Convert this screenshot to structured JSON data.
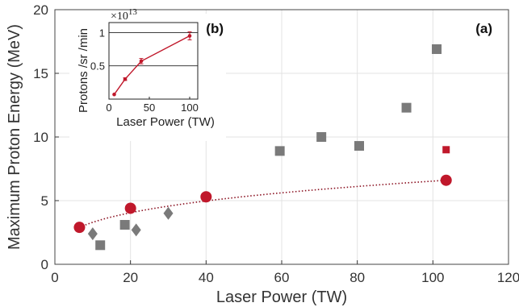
{
  "chart_data": [
    {
      "type": "scatter",
      "panel_label": "(a)",
      "xlabel": "Laser Power (TW)",
      "ylabel": "Maximum Proton Energy (MeV)",
      "xlim": [
        0,
        120
      ],
      "ylim": [
        0,
        20
      ],
      "xticks": [
        "0",
        "20",
        "40",
        "60",
        "80",
        "100",
        "120"
      ],
      "yticks": [
        "0",
        "5",
        "10",
        "15",
        "20"
      ],
      "grid": true,
      "series": [
        {
          "marker": "square",
          "color": "#7a7a7a",
          "points": [
            [
              12,
              1.5
            ],
            [
              18.5,
              3.1
            ],
            [
              59.5,
              8.9
            ],
            [
              70.5,
              10.0
            ],
            [
              80.5,
              9.3
            ],
            [
              93,
              12.3
            ],
            [
              101,
              16.9
            ]
          ]
        },
        {
          "marker": "diamond",
          "color": "#7a7a7a",
          "points": [
            [
              10,
              2.4
            ],
            [
              21.5,
              2.7
            ],
            [
              30,
              4.0
            ]
          ]
        },
        {
          "marker": "circle",
          "color": "#c0182b",
          "points": [
            [
              6.5,
              2.9
            ],
            [
              20,
              4.4
            ],
            [
              40,
              5.3
            ],
            [
              103.5,
              6.6
            ]
          ]
        },
        {
          "marker": "small-square",
          "color": "#c0182b",
          "points": [
            [
              103.5,
              9.0
            ]
          ]
        }
      ],
      "fit_curve": {
        "style": "dotted",
        "color": "#8a1020",
        "from": [
          6.5,
          2.9
        ],
        "to": [
          103.5,
          6.6
        ],
        "shape": "power-law"
      }
    },
    {
      "type": "line",
      "panel_label": "(b)",
      "xlabel": "Laser Power (TW)",
      "ylabel": "Protons /sr /min",
      "multiplier": "×10",
      "multiplier_exp": "13",
      "xlim": [
        0,
        110
      ],
      "ylim": [
        0,
        1.15
      ],
      "xticks": [
        {
          "v": 0,
          "t": "0"
        },
        {
          "v": 50,
          "t": "50"
        },
        {
          "v": 100,
          "t": "100"
        }
      ],
      "yticks": [
        {
          "v": 0.5,
          "t": "0.5"
        },
        {
          "v": 1,
          "t": "1"
        }
      ],
      "hgrid": [
        0.5,
        1
      ],
      "color": "#c0182b",
      "x": [
        6.5,
        20,
        40,
        100
      ],
      "y": [
        0.07,
        0.3,
        0.57,
        0.95
      ],
      "yerr": [
        0,
        0.02,
        0.04,
        0.06
      ]
    }
  ]
}
